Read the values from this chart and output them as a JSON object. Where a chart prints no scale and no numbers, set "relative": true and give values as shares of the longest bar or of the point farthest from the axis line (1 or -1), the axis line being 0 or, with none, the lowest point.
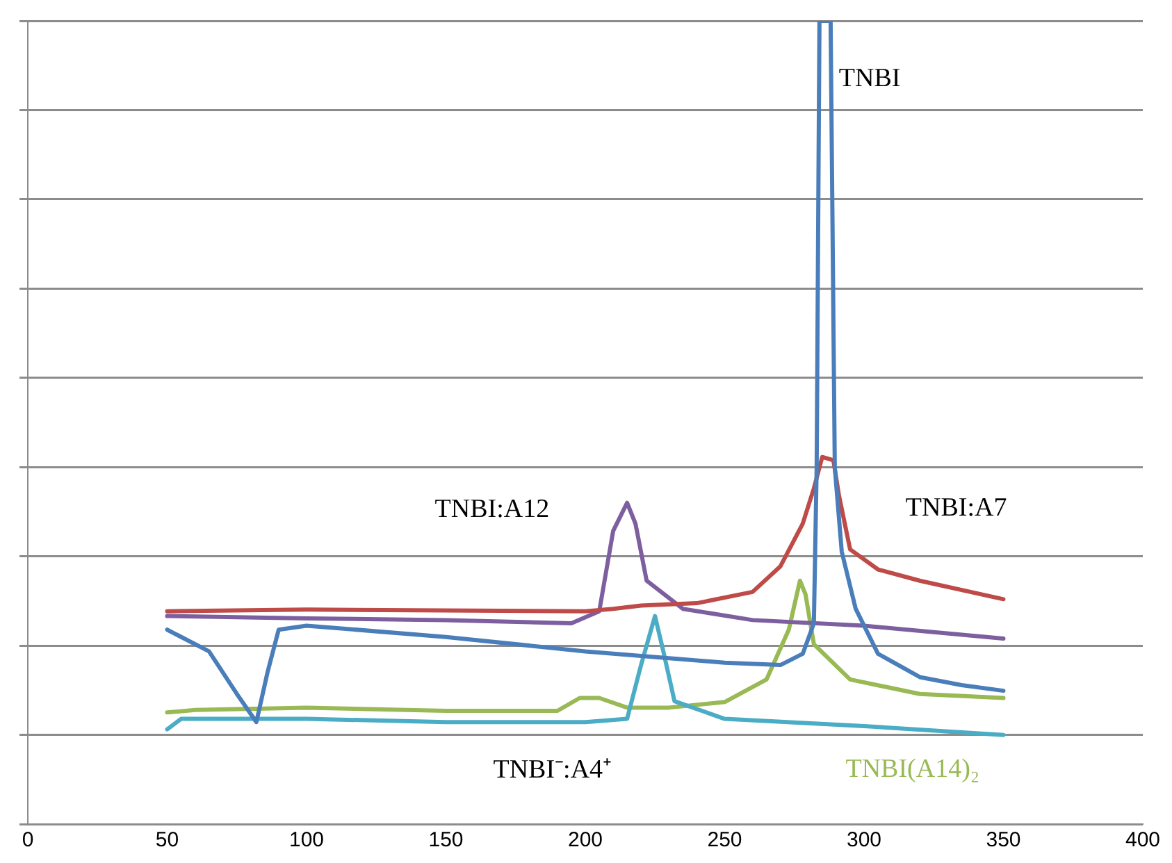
{
  "chart_data": {
    "type": "line",
    "relative": true,
    "xlim": [
      0,
      400
    ],
    "xticks": [
      0,
      50,
      100,
      150,
      200,
      250,
      300,
      350,
      400
    ],
    "grid": "y",
    "legend": false,
    "marker": "none",
    "line_style": "solid",
    "series": [
      {
        "name": "TNBI",
        "color": "#4a7ebb",
        "x": [
          50,
          65,
          75,
          82,
          86,
          90,
          100,
          150,
          200,
          250,
          270,
          278,
          282,
          283,
          284,
          288,
          289.5,
          292,
          297,
          305,
          320,
          335,
          350
        ],
        "values": [
          0.242,
          0.215,
          0.162,
          0.127,
          0.189,
          0.242,
          0.247,
          0.233,
          0.215,
          0.201,
          0.198,
          0.212,
          0.25,
          0.444,
          1,
          1,
          0.444,
          0.339,
          0.268,
          0.212,
          0.183,
          0.173,
          0.166
        ]
      },
      {
        "name": "TNBI:A7",
        "color": "#be4b48",
        "x": [
          50,
          100,
          200,
          210,
          220,
          240,
          260,
          270,
          278,
          282,
          285,
          289,
          291,
          295,
          305,
          320,
          350
        ],
        "values": [
          0.265,
          0.267,
          0.265,
          0.268,
          0.272,
          0.275,
          0.289,
          0.321,
          0.374,
          0.418,
          0.457,
          0.453,
          0.409,
          0.342,
          0.317,
          0.303,
          0.28
        ]
      },
      {
        "name": "TNBI:A12",
        "color": "#7d5fa0",
        "x": [
          50,
          100,
          150,
          195,
          205,
          210,
          215,
          218,
          222,
          235,
          260,
          300,
          350
        ],
        "values": [
          0.259,
          0.256,
          0.254,
          0.25,
          0.265,
          0.365,
          0.4,
          0.374,
          0.303,
          0.268,
          0.254,
          0.247,
          0.231
        ]
      },
      {
        "name": "TNBI⁻:A4⁺",
        "color": "#4bacc6",
        "x": [
          50,
          55,
          100,
          150,
          200,
          215,
          220,
          225,
          228,
          232,
          250,
          300,
          350
        ],
        "values": [
          0.118,
          0.131,
          0.131,
          0.127,
          0.127,
          0.131,
          0.198,
          0.259,
          0.215,
          0.153,
          0.131,
          0.122,
          0.111
        ]
      },
      {
        "name": "TNBI(A14)₂",
        "color": "#98b954",
        "x": [
          50,
          60,
          100,
          150,
          190,
          198,
          205,
          215,
          230,
          250,
          265,
          273,
          277,
          279,
          282,
          295,
          320,
          350
        ],
        "values": [
          0.139,
          0.142,
          0.145,
          0.141,
          0.141,
          0.157,
          0.157,
          0.145,
          0.145,
          0.152,
          0.18,
          0.242,
          0.303,
          0.286,
          0.224,
          0.18,
          0.162,
          0.157
        ]
      }
    ]
  }
}
